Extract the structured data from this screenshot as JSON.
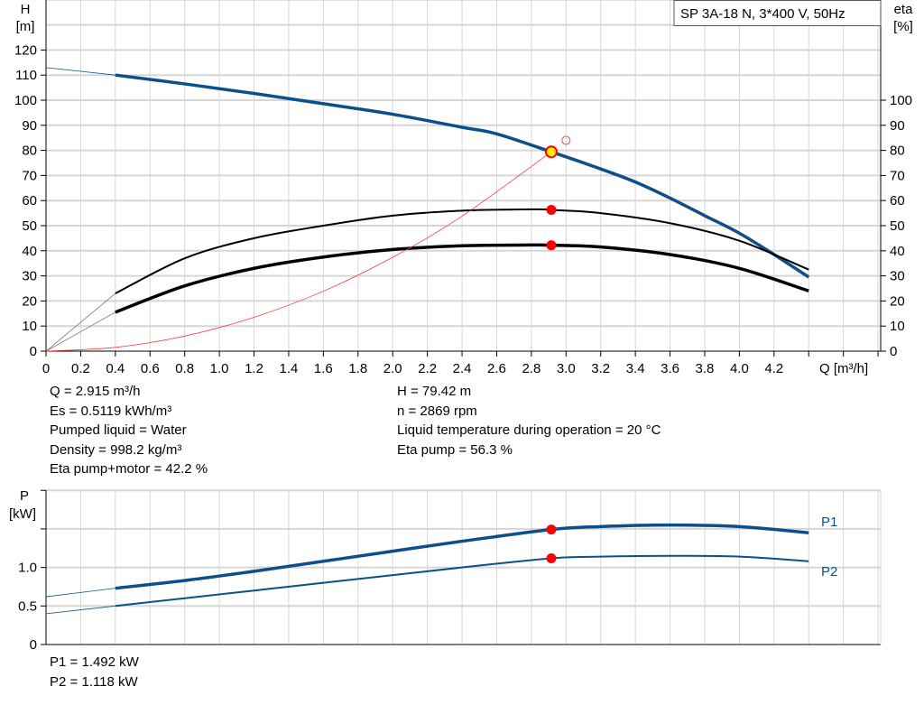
{
  "chart_data": [
    {
      "type": "line",
      "legend_title": "SP 3A-18 N, 3*400 V, 50Hz",
      "xlabel": "Q [m³/h]",
      "ylabel_left": [
        "H",
        "[m]"
      ],
      "ylabel_right": [
        "eta",
        "[%]"
      ],
      "xlim": [
        0,
        4.8
      ],
      "ylim_left": [
        0,
        140
      ],
      "ylim_right": [
        0,
        140
      ],
      "grid": true,
      "x_ticks": [
        "0",
        "0.2",
        "0.4",
        "0.6",
        "0.8",
        "1.0",
        "1.2",
        "1.4",
        "1.6",
        "1.8",
        "2.0",
        "2.2",
        "2.4",
        "2.6",
        "2.8",
        "3.0",
        "3.2",
        "3.4",
        "3.6",
        "3.8",
        "4.0",
        "4.2"
      ],
      "y_ticks_left": [
        "0",
        "10",
        "20",
        "30",
        "40",
        "50",
        "60",
        "70",
        "80",
        "90",
        "100",
        "110",
        "120"
      ],
      "y_ticks_right": [
        "0",
        "10",
        "20",
        "30",
        "40",
        "50",
        "60",
        "70",
        "80",
        "90",
        "100"
      ],
      "series": [
        {
          "id": "head",
          "color": "#0d4f8b",
          "x": [
            0.4,
            0.8,
            1.2,
            1.6,
            2.0,
            2.4,
            2.6,
            2.915,
            3.2,
            3.4,
            3.6,
            3.8,
            4.0,
            4.2,
            4.4
          ],
          "y": [
            110,
            106.5,
            102.7,
            98.6,
            94.4,
            89.2,
            86.6,
            79.42,
            72.6,
            67.4,
            61,
            54,
            47,
            38.5,
            29.5
          ],
          "extrapolated": {
            "x": [
              0,
              0.4
            ],
            "y": [
              113,
              110
            ]
          }
        },
        {
          "id": "eta-pump",
          "color": "#000000",
          "x": [
            0.4,
            0.8,
            1.2,
            1.6,
            2.0,
            2.4,
            2.8,
            2.915,
            3.2,
            3.6,
            4.0,
            4.4
          ],
          "y": [
            23,
            37,
            45,
            50,
            54,
            56,
            56.5,
            56.3,
            55,
            51,
            44,
            32.5
          ],
          "extrapolated": {
            "x": [
              0,
              0.4
            ],
            "y": [
              0,
              23
            ]
          }
        },
        {
          "id": "eta-total",
          "color": "#000000",
          "x": [
            0.4,
            0.8,
            1.2,
            1.6,
            2.0,
            2.4,
            2.8,
            2.915,
            3.2,
            3.6,
            4.0,
            4.4
          ],
          "y": [
            15.5,
            26,
            33,
            37.5,
            40.5,
            42,
            42.3,
            42.2,
            41.5,
            38.5,
            33,
            24
          ],
          "extrapolated": {
            "x": [
              0,
              0.4
            ],
            "y": [
              0,
              15.5
            ]
          }
        },
        {
          "id": "system-curve",
          "color": "#ff3b3b",
          "x": [
            0,
            0.4,
            0.8,
            1.2,
            1.6,
            2.0,
            2.4,
            2.915
          ],
          "y": [
            0,
            1.5,
            6,
            13.5,
            23.9,
            37.4,
            53.8,
            79.42
          ]
        }
      ],
      "duty_point": {
        "q": 2.915,
        "h": 79.42,
        "eta_pump": 56.3,
        "eta_total": 42.2
      },
      "requested_point": {
        "q": 3.0,
        "h": 84
      }
    },
    {
      "type": "line",
      "ylabel": [
        "P",
        "[kW]"
      ],
      "xlim": [
        0,
        4.8
      ],
      "ylim": [
        0,
        2.0
      ],
      "grid": true,
      "y_ticks": [
        "0",
        "0.5",
        "1.0"
      ],
      "series": [
        {
          "name": "P1",
          "color": "#0d4f8b",
          "x": [
            0.4,
            0.8,
            1.2,
            1.6,
            2.0,
            2.4,
            2.915,
            3.2,
            3.6,
            4.0,
            4.4
          ],
          "y": [
            0.73,
            0.83,
            0.95,
            1.08,
            1.21,
            1.34,
            1.492,
            1.53,
            1.55,
            1.53,
            1.45
          ],
          "extrapolated": {
            "x": [
              0,
              0.4
            ],
            "y": [
              0.62,
              0.73
            ]
          }
        },
        {
          "name": "P2",
          "color": "#0d4f8b",
          "x": [
            0.4,
            0.8,
            1.2,
            1.6,
            2.0,
            2.4,
            2.915,
            3.2,
            3.6,
            4.0,
            4.4
          ],
          "y": [
            0.5,
            0.6,
            0.7,
            0.8,
            0.9,
            1.0,
            1.118,
            1.14,
            1.15,
            1.14,
            1.08
          ],
          "extrapolated": {
            "x": [
              0,
              0.4
            ],
            "y": [
              0.4,
              0.5
            ]
          }
        }
      ],
      "duty_point": {
        "q": 2.915,
        "p1": 1.492,
        "p2": 1.118
      }
    }
  ],
  "info": {
    "left": [
      "Q = 2.915 m³/h",
      "Es = 0.5119 kWh/m³",
      "Pumped liquid = Water",
      "Density = 998.2 kg/m³",
      "Eta pump+motor = 42.2 %"
    ],
    "right": [
      "H = 79.42 m",
      "n = 2869 rpm",
      "Liquid temperature during operation = 20 °C",
      "Eta pump = 56.3 %"
    ],
    "power": [
      "P1 = 1.492 kW",
      "P2 = 1.118 kW"
    ]
  }
}
